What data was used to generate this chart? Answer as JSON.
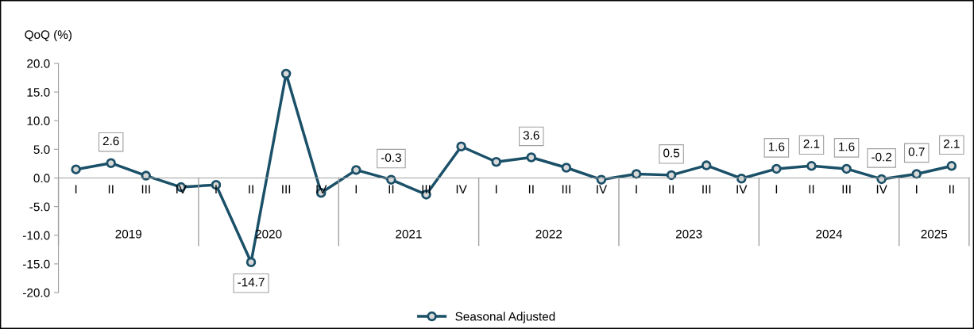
{
  "chart_data": {
    "type": "line",
    "ylabel": "QoQ (%)",
    "categories": [
      "I",
      "II",
      "III",
      "IV",
      "I",
      "II",
      "III",
      "IV",
      "I",
      "II",
      "III",
      "IV",
      "I",
      "II",
      "III",
      "IV",
      "I",
      "II",
      "III",
      "IV",
      "I",
      "II",
      "III",
      "IV",
      "I",
      "II"
    ],
    "series": [
      {
        "name": "Seasonal Adjusted",
        "color": "#1a5068",
        "values": [
          1.5,
          2.6,
          0.4,
          -1.6,
          -1.2,
          -14.7,
          18.2,
          -2.6,
          1.4,
          -0.3,
          -2.9,
          5.5,
          2.8,
          3.6,
          1.8,
          -0.3,
          0.7,
          0.5,
          2.2,
          -0.1,
          1.6,
          2.1,
          1.6,
          -0.2,
          0.7,
          2.1
        ],
        "value_labels": [
          null,
          "2.6",
          null,
          null,
          null,
          "-14.7",
          null,
          null,
          null,
          "-0.3",
          null,
          null,
          null,
          "3.6",
          null,
          null,
          null,
          "0.5",
          null,
          null,
          "1.6",
          "2.1",
          "1.6",
          "-0.2",
          "0.7",
          "2.1"
        ]
      }
    ],
    "ylim": [
      -20,
      20
    ],
    "yticks": [
      {
        "value": -20,
        "label": "-20.0"
      },
      {
        "value": -15,
        "label": "-15.0"
      },
      {
        "value": -10,
        "label": "-10.0"
      },
      {
        "value": -5,
        "label": "-5.0"
      },
      {
        "value": 0,
        "label": "0.0"
      },
      {
        "value": 5,
        "label": "5.0"
      },
      {
        "value": 10,
        "label": "10.0"
      },
      {
        "value": 15,
        "label": "15.0"
      },
      {
        "value": 20,
        "label": "20.0"
      }
    ],
    "annotations": [
      "2019",
      "2020",
      "2021",
      "2022",
      "2023",
      "2024",
      "2025"
    ],
    "marker": "circle",
    "line_style": "solid",
    "grid": false,
    "legend": "bottom"
  }
}
